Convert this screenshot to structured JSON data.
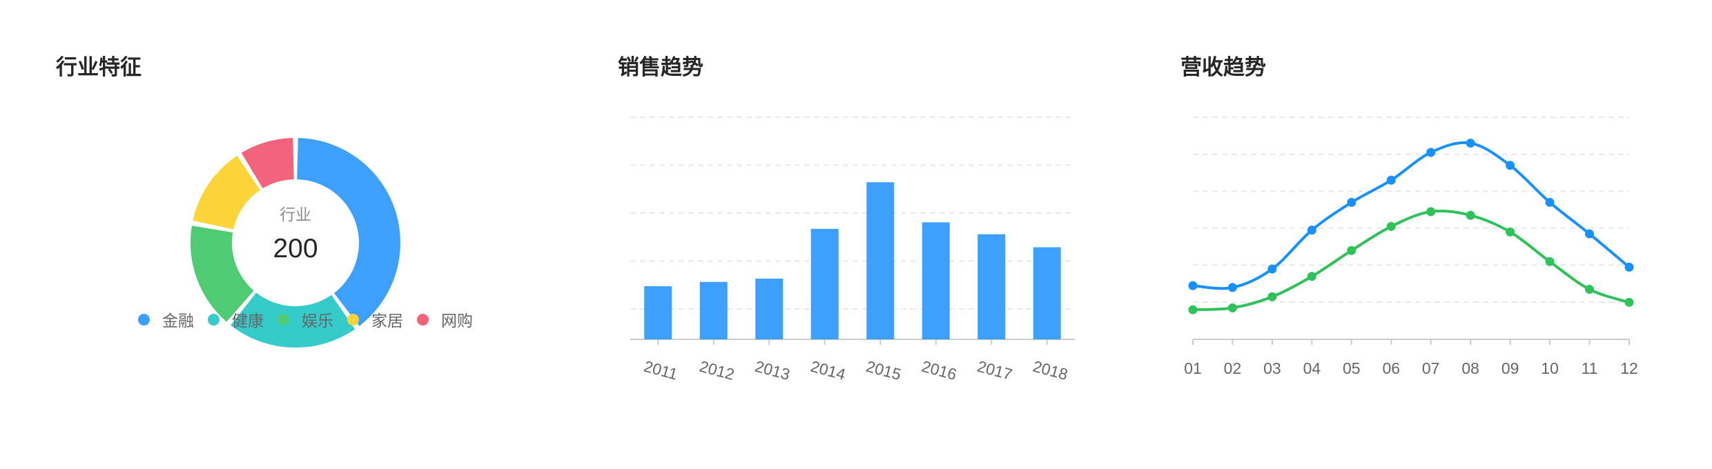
{
  "colors": {
    "blue": "#3da0ff",
    "teal": "#36cbcb",
    "green": "#4ecb73",
    "yellow": "#fbd437",
    "pink": "#f2637b",
    "grid": "#e8e8e8",
    "axis": "#cccccc",
    "line_blue": "#1890ff",
    "line_green": "#2fc25b"
  },
  "panels": {
    "industry": {
      "title": "行业特征"
    },
    "sales": {
      "title": "销售趋势"
    },
    "revenue": {
      "title": "营收趋势"
    }
  },
  "chart_data": [
    {
      "type": "pie",
      "style": "donut",
      "title": "行业特征",
      "center_label": "行业",
      "center_value": "200",
      "legend_position": "bottom",
      "slices": [
        {
          "name": "金融",
          "value": 40,
          "color": "#3da0ff"
        },
        {
          "name": "健康",
          "value": 21,
          "color": "#36cbcb"
        },
        {
          "name": "娱乐",
          "value": 17,
          "color": "#4ecb73"
        },
        {
          "name": "家居",
          "value": 13,
          "color": "#fbd437"
        },
        {
          "name": "网购",
          "value": 9,
          "color": "#f2637b"
        }
      ]
    },
    {
      "type": "bar",
      "title": "销售趋势",
      "categories": [
        "2011",
        "2012",
        "2013",
        "2014",
        "2015",
        "2016",
        "2017",
        "2018"
      ],
      "values": [
        49,
        53,
        56,
        102,
        145,
        108,
        97,
        85
      ],
      "ylim": [
        0,
        205
      ],
      "grid": true,
      "color": "#3da0ff"
    },
    {
      "type": "line",
      "title": "营收趋势",
      "x": [
        "01",
        "02",
        "03",
        "04",
        "05",
        "06",
        "07",
        "08",
        "09",
        "10",
        "11",
        "12"
      ],
      "ylim": [
        0,
        120
      ],
      "grid": true,
      "smooth": true,
      "series": [
        {
          "values": [
            29,
            28,
            38,
            59,
            74,
            86,
            101,
            106,
            94,
            74,
            57,
            39
          ],
          "color": "#1890ff"
        },
        {
          "values": [
            16,
            17,
            23,
            34,
            48,
            61,
            69,
            67,
            58,
            42,
            27,
            20
          ],
          "color": "#2fc25b"
        }
      ]
    }
  ]
}
